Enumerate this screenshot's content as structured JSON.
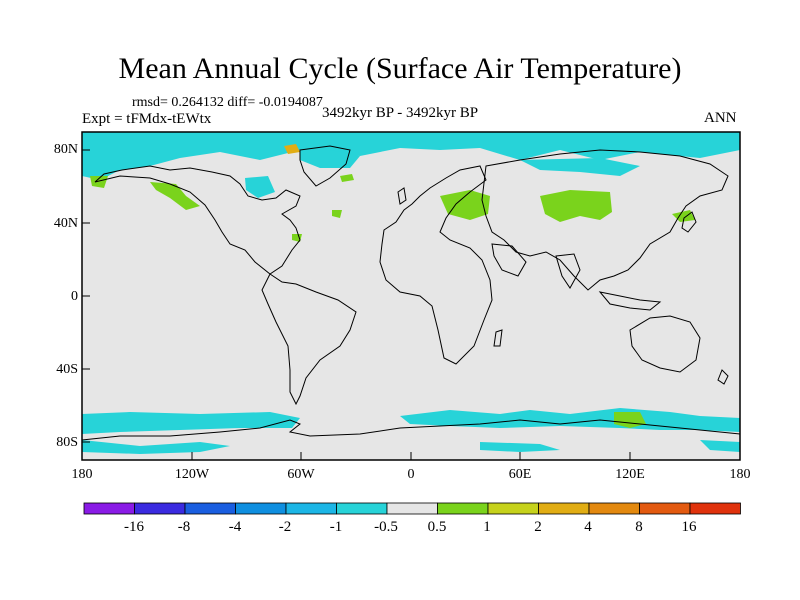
{
  "header": {
    "title": "Mean Annual Cycle (Surface Air Temperature)",
    "stats": "rmsd= 0.264132 diff= -0.0194087",
    "experiment": "Expt = tFMdx-tEWtx",
    "period": "3492kyr BP - 3492kyr BP",
    "season": "ANN"
  },
  "map": {
    "lat_labels": [
      "80N",
      "40N",
      "0",
      "40S",
      "80S"
    ],
    "lon_labels": [
      "180",
      "120W",
      "60W",
      "0",
      "60E",
      "120E",
      "180"
    ],
    "background_color": "#e6e6e6",
    "coast_color": "#000000"
  },
  "colorbar": {
    "labels": [
      "-16",
      "-8",
      "-4",
      "-2",
      "-1",
      "-0.5",
      "0.5",
      "1",
      "2",
      "4",
      "8",
      "16"
    ],
    "colors": [
      "#8a1be6",
      "#3b2be0",
      "#1a5ee0",
      "#0f8fe0",
      "#1cb6e6",
      "#27d3d8",
      "#e6e6e6",
      "#7ad31c",
      "#c6d21c",
      "#e1ad14",
      "#e3890f",
      "#e35a10",
      "#e0320c"
    ]
  }
}
